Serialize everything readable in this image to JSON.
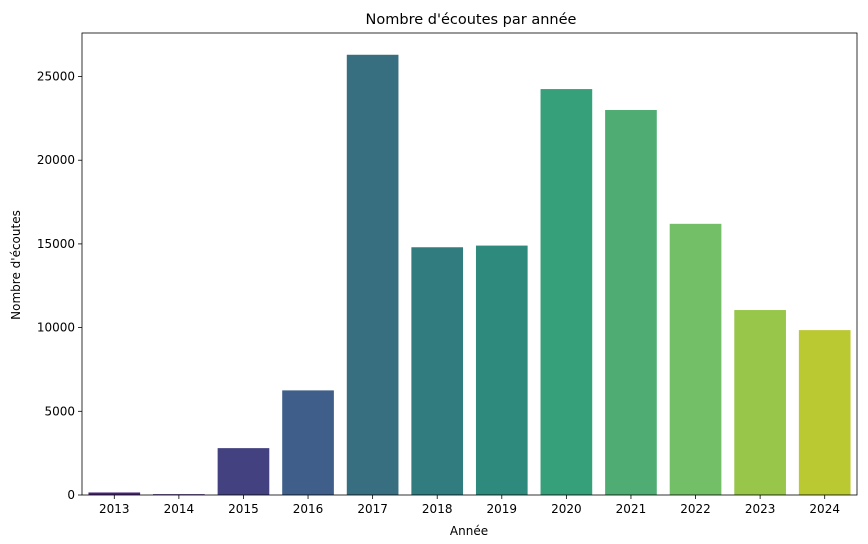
{
  "chart_data": {
    "type": "bar",
    "title": "Nombre d'écoutes par année",
    "xlabel": "Année",
    "ylabel": "Nombre d'écoutes",
    "categories": [
      "2013",
      "2014",
      "2015",
      "2016",
      "2017",
      "2018",
      "2019",
      "2020",
      "2021",
      "2022",
      "2023",
      "2024"
    ],
    "values": [
      150,
      50,
      2800,
      6250,
      26300,
      14800,
      14900,
      24250,
      23000,
      16200,
      11050,
      9850
    ],
    "colors": [
      "#482374",
      "#472e7c",
      "#43417f",
      "#3f5f8a",
      "#386f80",
      "#317c7f",
      "#2d8a7d",
      "#36a07b",
      "#4fad73",
      "#73bf68",
      "#97c64a",
      "#bac832"
    ],
    "yticks": [
      0,
      5000,
      10000,
      15000,
      20000,
      25000
    ],
    "ylim": [
      0,
      27600
    ],
    "grid": false,
    "legend": "none"
  }
}
